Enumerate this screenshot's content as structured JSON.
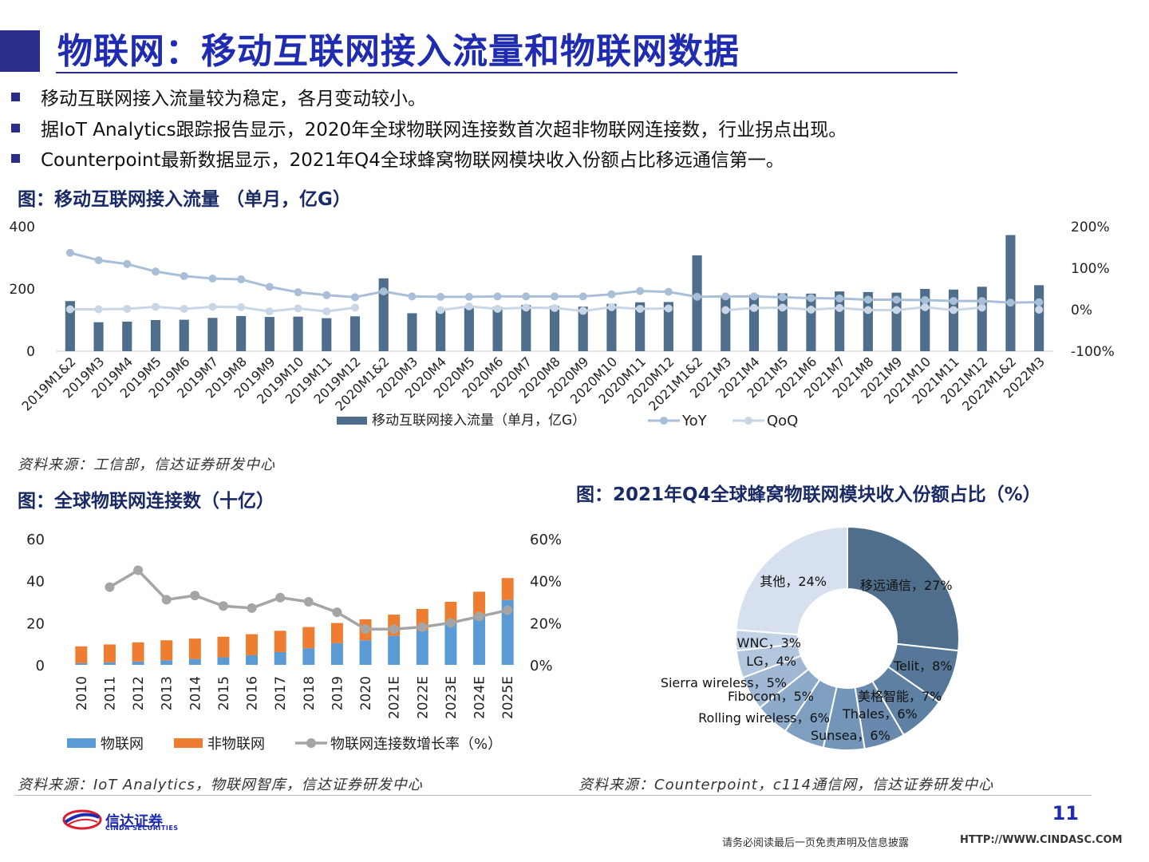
{
  "page": {
    "title": "物联网：移动互联网接入流量和物联网数据",
    "bullets": [
      "移动互联网接入流量较为稳定，各月变动较小。",
      "据IoT Analytics跟踪报告显示，2020年全球物联网连接数首次超非物联网连接数，行业拐点出现。",
      "Counterpoint最新数据显示，2021年Q4全球蜂窝物联网模块收入份额占比移远通信第一。"
    ],
    "page_number": "11",
    "disclaimer": "请务必阅读最后一页免责声明及信息披露",
    "disclaimer_url": "HTTP://WWW.CINDASC.COM",
    "logo_text": "信达证券",
    "logo_sub": "CINDA SECURITIES"
  },
  "fig1": {
    "title": "图：移动互联网接入流量 （单月，亿G）",
    "source": "资料来源：工信部，信达证券研发中心"
  },
  "fig2": {
    "title": "图：全球物联网连接数（十亿）",
    "source": "资料来源：IoT Analytics，物联网智库，信达证券研发中心"
  },
  "fig3": {
    "title": "图：2021年Q4全球蜂窝物联网模块收入份额占比（%）",
    "source": "资料来源：Counterpoint，c114通信网，信达证券研发中心"
  },
  "chart_data": [
    {
      "type": "bar",
      "categories": [
        "2019M1&2",
        "2019M3",
        "2019M4",
        "2019M5",
        "2019M6",
        "2019M7",
        "2019M8",
        "2019M9",
        "2019M10",
        "2019M11",
        "2019M12",
        "2020M1&2",
        "2020M3",
        "2020M4",
        "2020M5",
        "2020M6",
        "2020M7",
        "2020M8",
        "2020M9",
        "2020M10",
        "2020M11",
        "2020M12",
        "2021M1&2",
        "2021M3",
        "2021M4",
        "2021M5",
        "2021M6",
        "2021M7",
        "2021M8",
        "2021M9",
        "2021M10",
        "2021M11",
        "2021M12",
        "2022M1&2",
        "2022M3"
      ],
      "series": [
        {
          "name": "移动互联网接入流量（单月，亿G）",
          "kind": "bar",
          "axis": "left",
          "color": "#4f6e8c",
          "values": [
            161,
            93,
            95,
            100,
            101,
            107,
            113,
            110,
            111,
            106,
            112,
            234,
            122,
            130,
            138,
            142,
            148,
            145,
            143,
            152,
            157,
            158,
            308,
            172,
            181,
            186,
            185,
            192,
            190,
            188,
            200,
            198,
            207,
            373,
            212
          ]
        },
        {
          "name": "YoY",
          "kind": "line",
          "axis": "right",
          "color": "#a9bfd8",
          "values": [
            137,
            119,
            110,
            92,
            81,
            75,
            73,
            55,
            42,
            35,
            30,
            44,
            32,
            31,
            31,
            32,
            32,
            32,
            32,
            37,
            45,
            43,
            31,
            32,
            32,
            30,
            28,
            27,
            24,
            24,
            23,
            21,
            21,
            17,
            18
          ]
        },
        {
          "name": "QoQ",
          "kind": "line",
          "axis": "right",
          "color": "#c9d6e6",
          "values": [
            1,
            1,
            2,
            7,
            2,
            7,
            6,
            -4,
            3,
            -4,
            5,
            null,
            null,
            -1,
            8,
            2,
            5,
            4,
            -3,
            6,
            2,
            3,
            null,
            -1,
            4,
            5,
            0,
            4,
            -1,
            -1,
            6,
            -1,
            5,
            null,
            0
          ]
        }
      ],
      "ylim_left": [
        0,
        400
      ],
      "yticks_left": [
        "0",
        "200",
        "400"
      ],
      "ylim_right": [
        -100,
        200
      ],
      "yticks_right": [
        "-100%",
        "0%",
        "100%",
        "200%"
      ],
      "legend": [
        "移动互联网接入流量（单月，亿G）",
        "YoY",
        "QoQ"
      ],
      "legend_position": "bottom"
    },
    {
      "type": "bar",
      "stacked": true,
      "categories": [
        "2010",
        "2011",
        "2012",
        "2013",
        "2014",
        "2015",
        "2016",
        "2017",
        "2018",
        "2019",
        "2020",
        "2021E",
        "2022E",
        "2023E",
        "2024E",
        "2025E"
      ],
      "series": [
        {
          "name": "物联网",
          "kind": "bar",
          "axis": "left",
          "color": "#5b9bd5",
          "values": [
            0.8,
            1.2,
            1.6,
            2.2,
            2.8,
            3.6,
            4.6,
            6.1,
            7.9,
            10.3,
            11.7,
            13.8,
            16.4,
            20.0,
            23.5,
            30.9
          ]
        },
        {
          "name": "非物联网",
          "kind": "bar",
          "axis": "left",
          "color": "#ed7d31",
          "values": [
            8.0,
            8.5,
            9.1,
            9.5,
            9.7,
            9.8,
            10.0,
            10.1,
            10.1,
            9.6,
            10.0,
            10.1,
            10.2,
            10.0,
            11.3,
            10.4
          ]
        },
        {
          "name": "物联网连接数增长率（%）",
          "kind": "line",
          "axis": "right",
          "color": "#a5a5a5",
          "values": [
            null,
            37,
            45,
            31,
            33,
            28,
            27,
            32,
            30,
            25,
            17,
            17,
            18,
            20,
            23,
            26
          ]
        }
      ],
      "ylim_left": [
        0,
        60
      ],
      "yticks_left": [
        "0",
        "20",
        "40",
        "60"
      ],
      "ylim_right": [
        0,
        60
      ],
      "yticks_right": [
        "0%",
        "20%",
        "40%",
        "60%"
      ],
      "legend": [
        "物联网",
        "非物联网",
        "物联网连接数增长率（%）"
      ],
      "legend_position": "bottom"
    },
    {
      "type": "pie",
      "donut": true,
      "slices": [
        {
          "label": "移远通信",
          "value": 27,
          "text": "移远通信，27%",
          "color": "#4f6e8c"
        },
        {
          "label": "Telit",
          "value": 8,
          "text": "Telit，8%",
          "color": "#567797"
        },
        {
          "label": "美格智能",
          "value": 7,
          "text": "美格智能，7%",
          "color": "#5e80a2"
        },
        {
          "label": "Thales",
          "value": 6,
          "text": "Thales，6%",
          "color": "#6889ad"
        },
        {
          "label": "Sunsea",
          "value": 6,
          "text": "Sunsea，6%",
          "color": "#7395b8"
        },
        {
          "label": "Rolling wireless",
          "value": 6,
          "text": "Rolling wireless，6%",
          "color": "#7f9fc0"
        },
        {
          "label": "Fibocom",
          "value": 5,
          "text": "Fibocom，5%",
          "color": "#8eaacb"
        },
        {
          "label": "Sierra wireless",
          "value": 5,
          "text": "Sierra wireless，5%",
          "color": "#a0b8d4"
        },
        {
          "label": "LG",
          "value": 4,
          "text": "LG，4%",
          "color": "#b2c6de"
        },
        {
          "label": "WNC",
          "value": 3,
          "text": "WNC，3%",
          "color": "#c3d3e7"
        },
        {
          "label": "其他",
          "value": 24,
          "text": "其他，24%",
          "color": "#d6e0ee"
        }
      ]
    }
  ]
}
